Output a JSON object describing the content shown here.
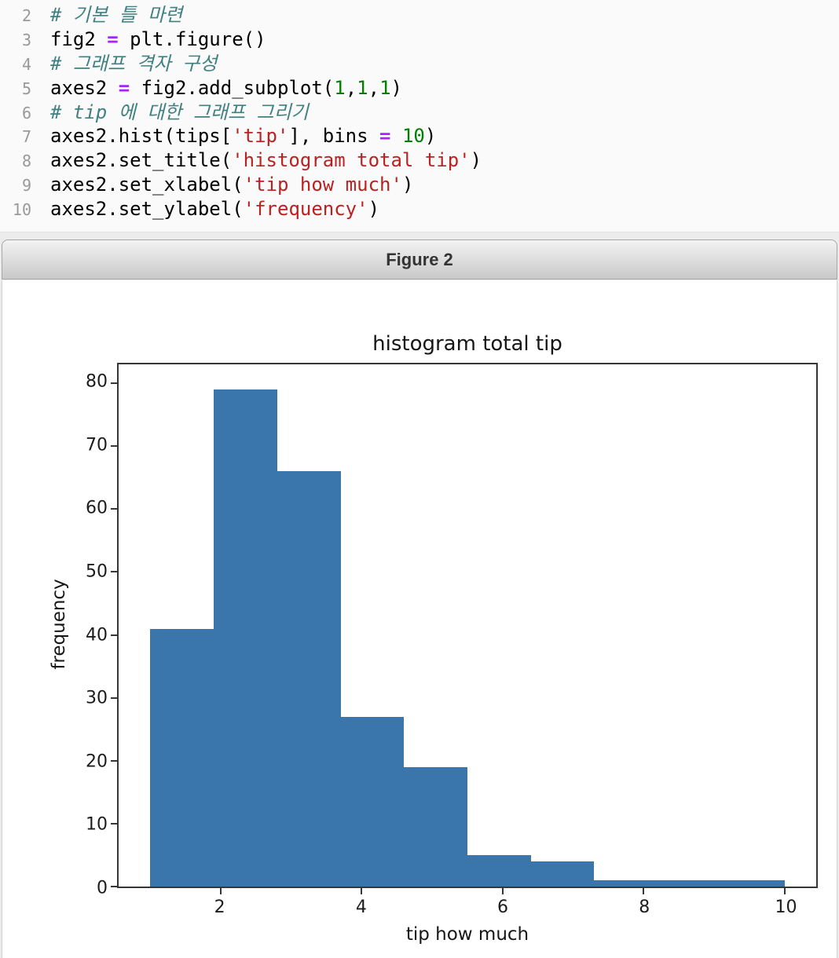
{
  "editor": {
    "colors": {
      "plain": "#000000",
      "comment": "#408080",
      "op": "#AA22FF",
      "num": "#008000",
      "str": "#BA2121",
      "gutter": "#999999"
    },
    "lines": [
      {
        "num": "2",
        "tokens": [
          [
            "comment",
            "# 기본 틀 마련"
          ]
        ]
      },
      {
        "num": "3",
        "tokens": [
          [
            "plain",
            "fig2 "
          ],
          [
            "op",
            "="
          ],
          [
            "plain",
            " plt.figure()"
          ]
        ]
      },
      {
        "num": "4",
        "tokens": [
          [
            "comment",
            "# 그래프 격자 구성"
          ]
        ]
      },
      {
        "num": "5",
        "tokens": [
          [
            "plain",
            "axes2 "
          ],
          [
            "op",
            "="
          ],
          [
            "plain",
            " fig2.add_subplot("
          ],
          [
            "num",
            "1"
          ],
          [
            "plain",
            ","
          ],
          [
            "num",
            "1"
          ],
          [
            "plain",
            ","
          ],
          [
            "num",
            "1"
          ],
          [
            "plain",
            ")"
          ]
        ]
      },
      {
        "num": "6",
        "tokens": [
          [
            "comment",
            "# tip 에 대한 그래프 그리기"
          ]
        ]
      },
      {
        "num": "7",
        "tokens": [
          [
            "plain",
            "axes2.hist(tips["
          ],
          [
            "str",
            "'tip'"
          ],
          [
            "plain",
            "], bins "
          ],
          [
            "op",
            "="
          ],
          [
            "plain",
            " "
          ],
          [
            "num",
            "10"
          ],
          [
            "plain",
            ")"
          ]
        ]
      },
      {
        "num": "8",
        "tokens": [
          [
            "plain",
            "axes2.set_title("
          ],
          [
            "str",
            "'histogram total tip'"
          ],
          [
            "plain",
            ")"
          ]
        ]
      },
      {
        "num": "9",
        "tokens": [
          [
            "plain",
            "axes2.set_xlabel("
          ],
          [
            "str",
            "'tip how much'"
          ],
          [
            "plain",
            ")"
          ]
        ]
      },
      {
        "num": "10",
        "tokens": [
          [
            "plain",
            "axes2.set_ylabel("
          ],
          [
            "str",
            "'frequency'"
          ],
          [
            "plain",
            ")"
          ]
        ]
      }
    ]
  },
  "figure_window": {
    "title": "Figure 2"
  },
  "chart_data": {
    "type": "bar",
    "subtype": "histogram",
    "title": "histogram total tip",
    "xlabel": "tip how much",
    "ylabel": "frequency",
    "bin_edges": [
      1.0,
      1.9,
      2.8,
      3.7,
      4.6,
      5.5,
      6.4,
      7.3,
      8.2,
      9.1,
      10.0
    ],
    "counts": [
      41,
      79,
      66,
      27,
      19,
      5,
      4,
      1,
      1,
      1
    ],
    "x_ticks": [
      2,
      4,
      6,
      8,
      10
    ],
    "y_ticks": [
      0,
      10,
      20,
      30,
      40,
      50,
      60,
      70,
      80
    ],
    "xlim": [
      0.55,
      10.45
    ],
    "ylim": [
      0,
      83
    ],
    "bar_color": "#3a76ab",
    "grid": false,
    "legend": "none"
  }
}
